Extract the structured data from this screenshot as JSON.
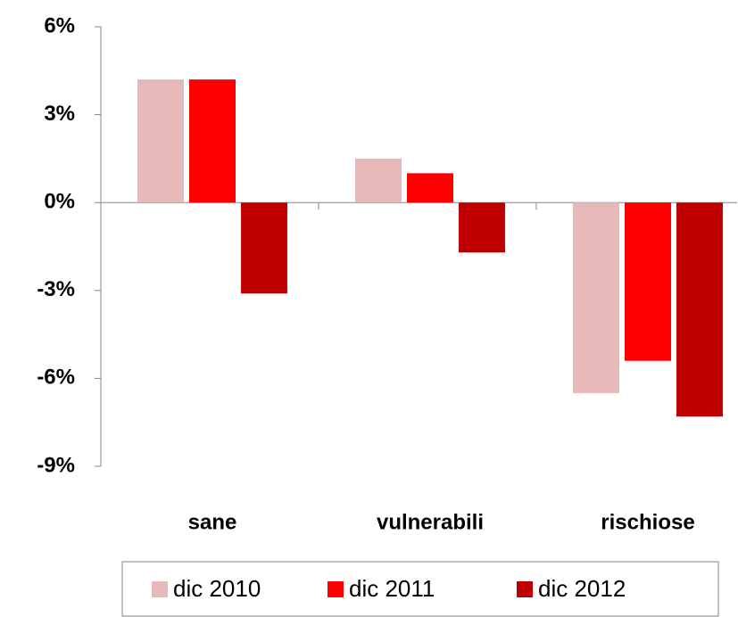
{
  "chart_data": {
    "type": "bar",
    "categories": [
      "sane",
      "vulnerabili",
      "rischiose"
    ],
    "series": [
      {
        "name": "dic 2010",
        "color": "#e6b8b7",
        "values": [
          4.2,
          1.5,
          -6.5
        ]
      },
      {
        "name": "dic 2011",
        "color": "#ff0000",
        "values": [
          4.2,
          1.0,
          -5.4
        ]
      },
      {
        "name": "dic 2012",
        "color": "#c00000",
        "values": [
          -3.1,
          -1.7,
          -7.3
        ]
      }
    ],
    "ylim": [
      -9,
      6
    ],
    "yticks": [
      {
        "value": -9,
        "label": "-9%"
      },
      {
        "value": -6,
        "label": "-6%"
      },
      {
        "value": -3,
        "label": "-3%"
      },
      {
        "value": 0,
        "label": "0%"
      },
      {
        "value": 3,
        "label": "3%"
      },
      {
        "value": 6,
        "label": "6%"
      }
    ],
    "legend": "bottom"
  }
}
